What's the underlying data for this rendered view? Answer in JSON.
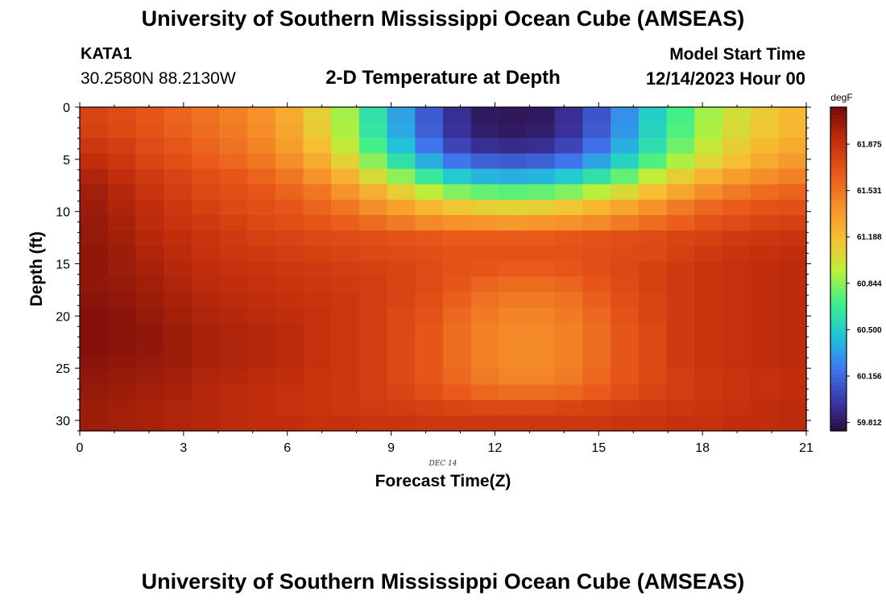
{
  "header": {
    "title": "University of Southern Mississippi Ocean Cube (AMSEAS)",
    "station": "KATA1",
    "coordinates": "30.2580N  88.2130W",
    "plot_title": "2-D Temperature at Depth",
    "model_start_label": "Model Start Time",
    "model_start_value": "12/14/2023 Hour 00",
    "footer_title": "University of Southern Mississippi Ocean Cube (AMSEAS)"
  },
  "chart_data": {
    "type": "heatmap",
    "title": "2-D Temperature at Depth",
    "xlabel": "Forecast Time(Z)",
    "ylabel": "Depth (ft)",
    "x_ticks": [
      "0",
      "3",
      "6",
      "9",
      "12",
      "15",
      "18",
      "21"
    ],
    "y_ticks": [
      "0",
      "5",
      "10",
      "15",
      "20",
      "25",
      "30"
    ],
    "x_range": [
      0,
      21
    ],
    "y_range": [
      0,
      31
    ],
    "date_annotation": "DEC 14",
    "colorbar": {
      "unit": "degF",
      "ticks": [
        "61.875",
        "61.531",
        "61.188",
        "60.844",
        "60.500",
        "60.156",
        "59.812"
      ],
      "range": [
        59.75,
        62.15
      ],
      "colors": [
        "#2a0a3a",
        "#3b38a8",
        "#3f78f0",
        "#1fc6d8",
        "#3ef08a",
        "#bdf03a",
        "#f6c032",
        "#f6902a",
        "#e8581a",
        "#c42f0c",
        "#7a0d08"
      ]
    },
    "depth_levels_ft": [
      0,
      1.5,
      3,
      4.5,
      6,
      7.5,
      9,
      10.5,
      12,
      13.5,
      15,
      16.5,
      18,
      19.5,
      21,
      22.5,
      24,
      25.5,
      27,
      28.5,
      30
    ],
    "temperature_degF": [
      [
        61.78,
        61.74,
        61.68,
        61.62,
        61.56,
        61.5,
        61.42,
        61.3,
        61.12,
        60.9,
        60.62,
        60.36,
        60.12,
        59.94,
        59.84,
        59.82,
        59.84,
        59.94,
        60.1,
        60.3,
        60.52,
        60.72,
        60.9,
        61.04,
        61.14,
        61.22
      ],
      [
        61.8,
        61.76,
        61.7,
        61.64,
        61.58,
        61.52,
        61.44,
        61.32,
        61.14,
        60.92,
        60.64,
        60.38,
        60.14,
        59.96,
        59.86,
        59.84,
        59.86,
        59.96,
        60.12,
        60.32,
        60.54,
        60.74,
        60.92,
        61.06,
        61.16,
        61.24
      ],
      [
        61.86,
        61.82,
        61.74,
        61.68,
        61.62,
        61.56,
        61.48,
        61.36,
        61.2,
        60.98,
        60.72,
        60.46,
        60.22,
        60.04,
        59.94,
        59.92,
        59.94,
        60.04,
        60.2,
        60.4,
        60.6,
        60.8,
        60.98,
        61.12,
        61.22,
        61.3
      ],
      [
        61.92,
        61.86,
        61.78,
        61.72,
        61.66,
        61.6,
        61.54,
        61.44,
        61.3,
        61.1,
        60.86,
        60.62,
        60.4,
        60.22,
        60.14,
        60.12,
        60.14,
        60.22,
        60.36,
        60.54,
        60.74,
        60.92,
        61.08,
        61.2,
        61.3,
        61.38
      ],
      [
        61.98,
        61.92,
        61.84,
        61.78,
        61.72,
        61.68,
        61.62,
        61.54,
        61.42,
        61.26,
        61.06,
        60.86,
        60.66,
        60.5,
        60.42,
        60.4,
        60.42,
        60.5,
        60.62,
        60.78,
        60.96,
        61.12,
        61.26,
        61.36,
        61.44,
        61.5
      ],
      [
        62.02,
        61.96,
        61.88,
        61.82,
        61.76,
        61.72,
        61.68,
        61.62,
        61.54,
        61.42,
        61.28,
        61.12,
        60.96,
        60.84,
        60.78,
        60.76,
        60.78,
        60.84,
        60.94,
        61.06,
        61.2,
        61.32,
        61.44,
        61.52,
        61.58,
        61.62
      ],
      [
        62.04,
        61.98,
        61.92,
        61.86,
        61.8,
        61.76,
        61.72,
        61.68,
        61.62,
        61.54,
        61.44,
        61.34,
        61.24,
        61.16,
        61.12,
        61.1,
        61.12,
        61.16,
        61.24,
        61.32,
        61.42,
        61.52,
        61.6,
        61.66,
        61.7,
        61.72
      ],
      [
        62.06,
        62.0,
        61.94,
        61.88,
        61.84,
        61.8,
        61.76,
        61.72,
        61.68,
        61.64,
        61.58,
        61.52,
        61.46,
        61.42,
        61.4,
        61.38,
        61.4,
        61.42,
        61.46,
        61.52,
        61.58,
        61.64,
        61.7,
        61.74,
        61.78,
        61.8
      ],
      [
        62.06,
        62.02,
        61.96,
        61.92,
        61.88,
        61.84,
        61.8,
        61.78,
        61.76,
        61.74,
        61.72,
        61.7,
        61.68,
        61.66,
        61.66,
        61.66,
        61.66,
        61.68,
        61.7,
        61.72,
        61.74,
        61.78,
        61.8,
        61.84,
        61.86,
        61.88
      ],
      [
        62.08,
        62.04,
        61.98,
        61.94,
        61.9,
        61.86,
        61.84,
        61.82,
        61.8,
        61.78,
        61.76,
        61.74,
        61.72,
        61.7,
        61.7,
        61.7,
        61.7,
        61.7,
        61.72,
        61.74,
        61.76,
        61.8,
        61.84,
        61.88,
        61.9,
        61.92
      ],
      [
        62.08,
        62.04,
        62.0,
        61.96,
        61.92,
        61.9,
        61.88,
        61.86,
        61.84,
        61.82,
        61.8,
        61.78,
        61.74,
        61.7,
        61.68,
        61.66,
        61.66,
        61.68,
        61.72,
        61.76,
        61.8,
        61.84,
        61.88,
        61.9,
        61.92,
        61.94
      ],
      [
        62.08,
        62.06,
        62.02,
        61.98,
        61.94,
        61.92,
        61.9,
        61.88,
        61.86,
        61.84,
        61.82,
        61.78,
        61.74,
        61.68,
        61.62,
        61.58,
        61.58,
        61.62,
        61.68,
        61.74,
        61.8,
        61.84,
        61.88,
        61.9,
        61.92,
        61.94
      ],
      [
        62.1,
        62.08,
        62.04,
        62.0,
        61.96,
        61.94,
        61.92,
        61.9,
        61.88,
        61.86,
        61.82,
        61.78,
        61.72,
        61.64,
        61.56,
        61.52,
        61.52,
        61.56,
        61.64,
        61.72,
        61.78,
        61.84,
        61.88,
        61.9,
        61.92,
        61.94
      ],
      [
        62.12,
        62.1,
        62.06,
        62.02,
        61.98,
        61.96,
        61.94,
        61.92,
        61.9,
        61.86,
        61.82,
        61.76,
        61.7,
        61.6,
        61.52,
        61.48,
        61.48,
        61.52,
        61.6,
        61.7,
        61.78,
        61.84,
        61.88,
        61.9,
        61.92,
        61.94
      ],
      [
        62.12,
        62.1,
        62.08,
        62.04,
        62.0,
        61.98,
        61.96,
        61.94,
        61.9,
        61.86,
        61.82,
        61.76,
        61.68,
        61.58,
        61.5,
        61.46,
        61.46,
        61.5,
        61.58,
        61.68,
        61.76,
        61.84,
        61.88,
        61.9,
        61.92,
        61.94
      ],
      [
        62.12,
        62.1,
        62.08,
        62.04,
        62.0,
        61.98,
        61.96,
        61.94,
        61.9,
        61.86,
        61.82,
        61.76,
        61.68,
        61.58,
        61.5,
        61.46,
        61.46,
        61.5,
        61.58,
        61.68,
        61.76,
        61.84,
        61.88,
        61.9,
        61.92,
        61.94
      ],
      [
        62.1,
        62.08,
        62.06,
        62.04,
        62.0,
        61.98,
        61.96,
        61.94,
        61.9,
        61.86,
        61.82,
        61.76,
        61.68,
        61.58,
        61.5,
        61.46,
        61.46,
        61.5,
        61.58,
        61.68,
        61.76,
        61.84,
        61.88,
        61.9,
        61.92,
        61.94
      ],
      [
        62.08,
        62.06,
        62.04,
        62.02,
        61.98,
        61.96,
        61.94,
        61.92,
        61.88,
        61.86,
        61.82,
        61.76,
        61.68,
        61.6,
        61.52,
        61.48,
        61.48,
        61.52,
        61.6,
        61.68,
        61.76,
        61.82,
        61.86,
        61.88,
        61.9,
        61.92
      ],
      [
        62.06,
        62.04,
        62.02,
        62.0,
        61.96,
        61.94,
        61.92,
        61.9,
        61.88,
        61.86,
        61.82,
        61.78,
        61.72,
        61.66,
        61.6,
        61.58,
        61.58,
        61.6,
        61.66,
        61.72,
        61.78,
        61.82,
        61.86,
        61.88,
        61.9,
        61.92
      ],
      [
        62.04,
        62.02,
        62.0,
        61.98,
        61.96,
        61.94,
        61.92,
        61.9,
        61.88,
        61.86,
        61.84,
        61.82,
        61.8,
        61.78,
        61.76,
        61.76,
        61.76,
        61.78,
        61.8,
        61.82,
        61.84,
        61.86,
        61.88,
        61.9,
        61.92,
        61.94
      ],
      [
        62.04,
        62.02,
        62.0,
        61.98,
        61.96,
        61.94,
        61.92,
        61.92,
        61.9,
        61.9,
        61.88,
        61.88,
        61.86,
        61.86,
        61.86,
        61.86,
        61.86,
        61.86,
        61.86,
        61.88,
        61.88,
        61.9,
        61.9,
        61.92,
        61.92,
        61.94
      ]
    ]
  }
}
